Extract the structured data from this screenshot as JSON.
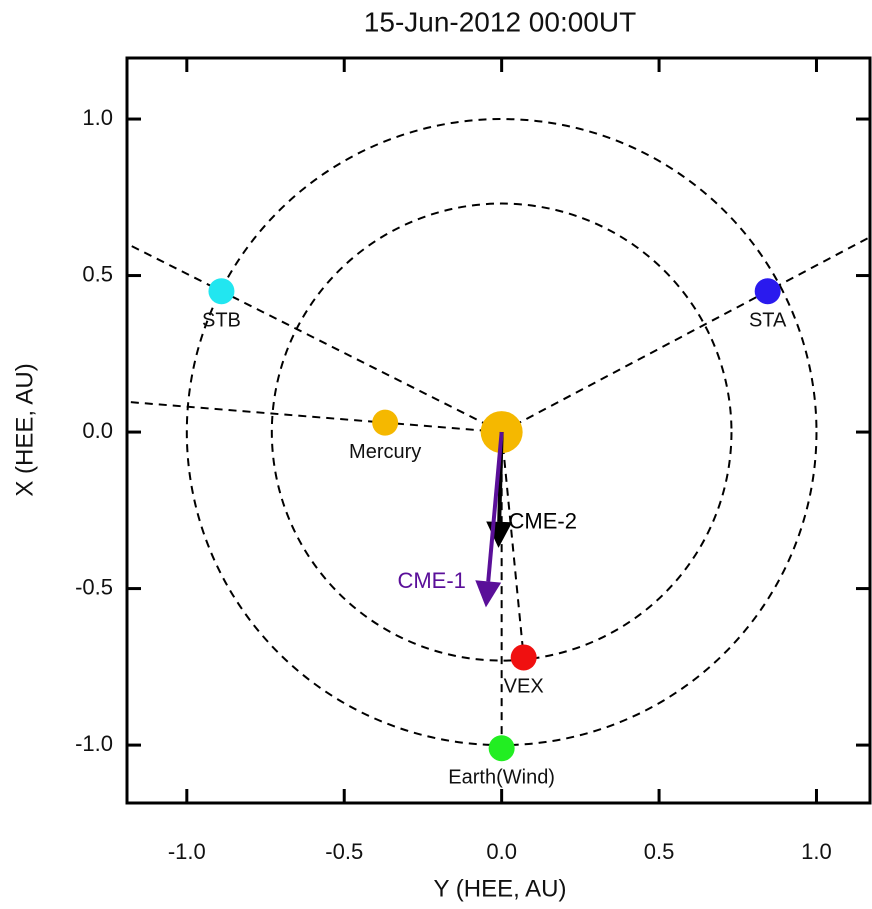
{
  "chart_data": {
    "type": "scatter",
    "title": "15-Jun-2012 00:00UT",
    "x_label": "Y (HEE, AU)",
    "y_label": "X (HEE, AU)",
    "xlim": [
      -1.19,
      1.17
    ],
    "ylim": [
      -1.185,
      1.195
    ],
    "xticks": [
      {
        "value": -1.0,
        "label": "-1.0"
      },
      -0.5,
      {
        "value": 0.0,
        "label": "0.0"
      },
      0.5,
      {
        "value": 1.0,
        "label": "1.0"
      }
    ],
    "yticks": [
      {
        "value": -1.0,
        "label": "-1.0"
      },
      -0.5,
      {
        "value": 0.0,
        "label": "0.0"
      },
      0.5,
      {
        "value": 1.0,
        "label": "1.0"
      }
    ],
    "orbits": [
      1.0,
      0.73
    ],
    "series": [
      {
        "color": "#f5b800",
        "marker_size": "large",
        "x": [
          0.0
        ],
        "values": [
          0.0
        ]
      },
      {
        "name": "STB",
        "color": "#22e6f0",
        "x": [
          -0.89
        ],
        "values": [
          0.45
        ],
        "ray_to_edge": true
      },
      {
        "name": "STA",
        "color": "#2a1aee",
        "x": [
          0.845
        ],
        "values": [
          0.45
        ],
        "ray_to_edge": true
      },
      {
        "name": "Mercury",
        "color": "#f5b800",
        "x": [
          -0.37
        ],
        "values": [
          0.03
        ],
        "ray_to_edge": true
      },
      {
        "name": "VEX",
        "color": "#f01010",
        "x": [
          0.07
        ],
        "values": [
          -0.72
        ],
        "ray_to_edge": false
      },
      {
        "name": "Earth(Wind)",
        "color": "#22ee22",
        "x": [
          0.0
        ],
        "values": [
          -1.01
        ],
        "ray_to_edge": false
      }
    ],
    "arrows": [
      {
        "name": "CME-2",
        "color": "#000000",
        "label_side": "right",
        "x": [
          0.0,
          -0.01
        ],
        "values": [
          0.0,
          -0.37
        ]
      },
      {
        "name": "CME-1",
        "color": "#5a0f99",
        "label_side": "left",
        "x": [
          0.0,
          -0.05
        ],
        "values": [
          0.0,
          -0.56
        ]
      }
    ]
  }
}
